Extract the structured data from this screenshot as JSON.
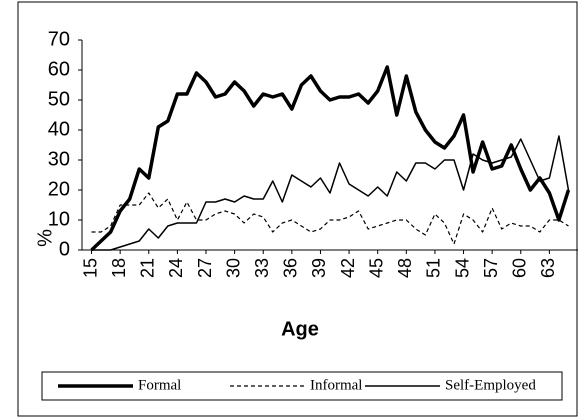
{
  "chart_data": {
    "type": "line",
    "x": [
      15,
      16,
      17,
      18,
      19,
      20,
      21,
      22,
      23,
      24,
      25,
      26,
      27,
      28,
      29,
      30,
      31,
      32,
      33,
      34,
      35,
      36,
      37,
      38,
      39,
      40,
      41,
      42,
      43,
      44,
      45,
      46,
      47,
      48,
      49,
      50,
      51,
      52,
      53,
      54,
      55,
      56,
      57,
      58,
      59,
      60,
      61,
      62,
      63,
      64,
      65
    ],
    "series": [
      {
        "name": "Formal",
        "color": "#000000",
        "values": [
          0,
          3,
          6,
          13,
          17,
          27,
          24,
          41,
          43,
          52,
          52,
          59,
          56,
          51,
          52,
          56,
          53,
          48,
          52,
          51,
          52,
          47,
          55,
          58,
          53,
          50,
          51,
          51,
          52,
          49,
          53,
          61,
          45,
          58,
          46,
          40,
          36,
          34,
          38,
          45,
          26,
          36,
          27,
          28,
          35,
          27,
          20,
          24,
          19,
          10,
          20
        ]
      },
      {
        "name": "Informal",
        "color": "#000000",
        "values": [
          6,
          6,
          8,
          15,
          15,
          15,
          19,
          14,
          17,
          10,
          16,
          10,
          10,
          12,
          13,
          12,
          9,
          12,
          11,
          6,
          9,
          10,
          8,
          6,
          7,
          10,
          10,
          11,
          13,
          7,
          8,
          9,
          10,
          10,
          7,
          5,
          12,
          9,
          2,
          12,
          10,
          6,
          14,
          7,
          9,
          8,
          8,
          6,
          10,
          10,
          8
        ]
      },
      {
        "name": "Self-Employed",
        "color": "#000000",
        "values": [
          0,
          0,
          0,
          1,
          2,
          3,
          7,
          4,
          8,
          9,
          9,
          9,
          16,
          16,
          17,
          16,
          18,
          17,
          17,
          23,
          16,
          25,
          23,
          21,
          24,
          19,
          29,
          22,
          20,
          18,
          21,
          18,
          26,
          23,
          29,
          29,
          27,
          30,
          30,
          20,
          32,
          30,
          29,
          30,
          31,
          37,
          30,
          23,
          24,
          38,
          20
        ]
      }
    ],
    "xlabel": "Age",
    "ylabel": "%",
    "xlim": [
      14,
      66
    ],
    "xticks": [
      15,
      18,
      21,
      24,
      27,
      30,
      33,
      36,
      39,
      42,
      45,
      48,
      51,
      54,
      57,
      60,
      63
    ],
    "ylim": [
      0,
      70
    ],
    "yticks": [
      0,
      10,
      20,
      30,
      40,
      50,
      60,
      70
    ],
    "legend": "bottom"
  }
}
